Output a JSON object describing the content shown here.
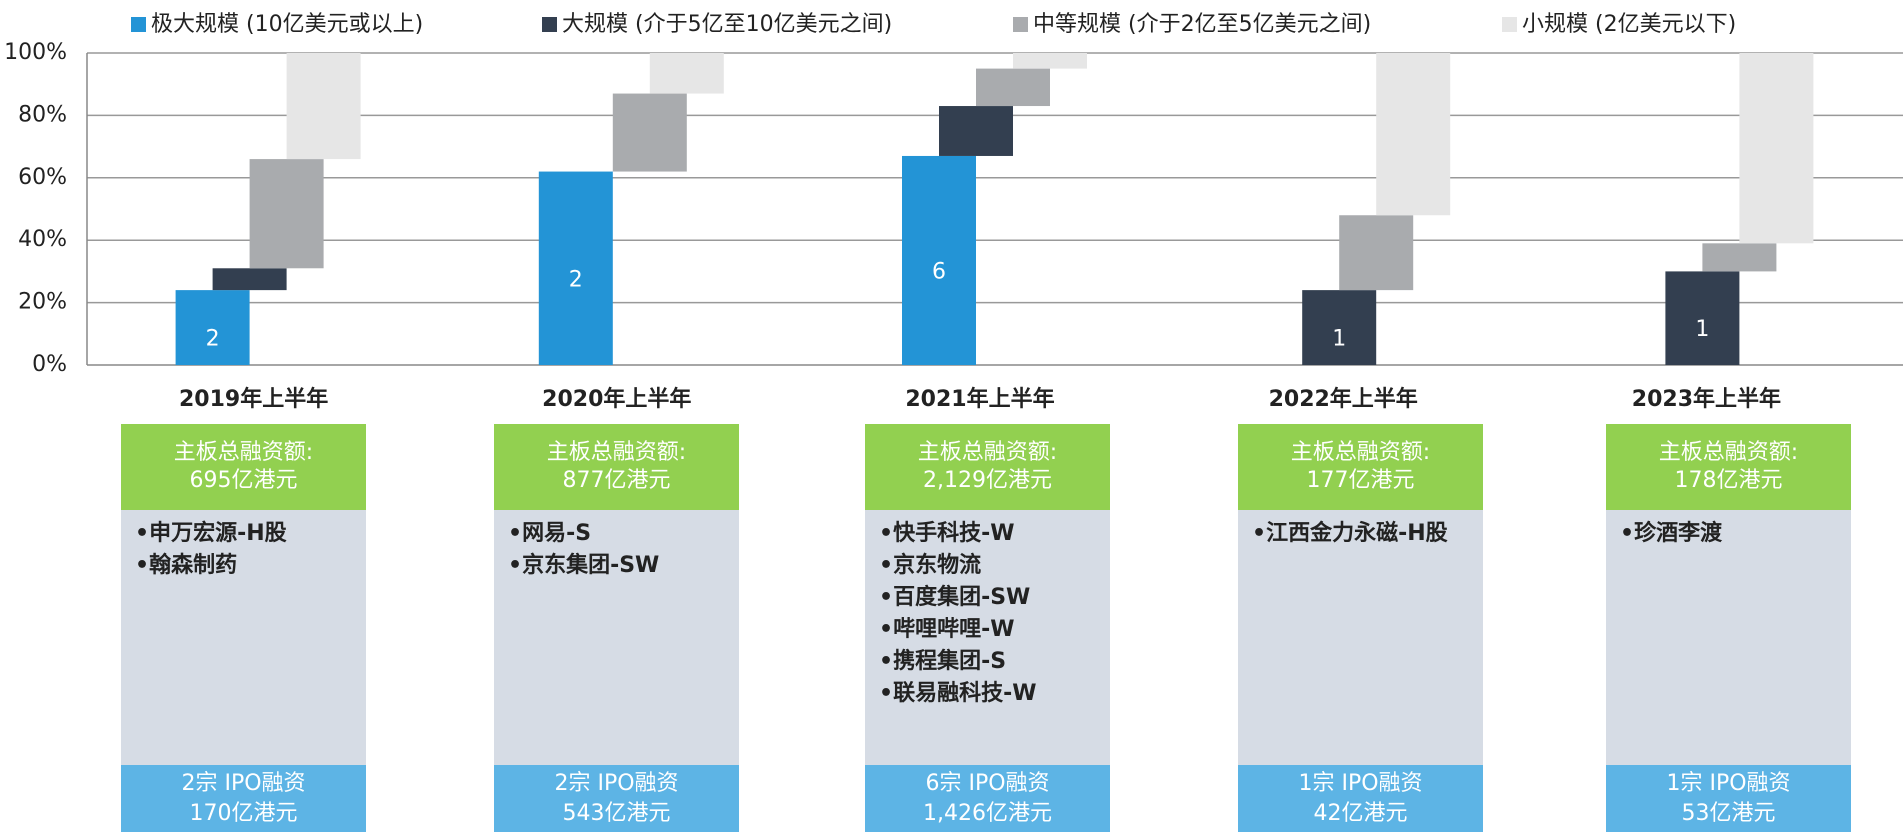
{
  "chart_data": {
    "type": "floating-stacked-bar",
    "categories": [
      "2019年上半年",
      "2020年上半年",
      "2021年上半年",
      "2022年上半年",
      "2023年上半年"
    ],
    "series": [
      {
        "name": "极大规模 (10亿美元或以上)",
        "color": "#2394d6",
        "values": [
          24,
          62,
          67,
          0,
          0
        ],
        "counts": [
          2,
          2,
          6,
          null,
          null
        ]
      },
      {
        "name": "大规模 (介于5亿至10亿美元之间)",
        "color": "#333f50",
        "values": [
          7,
          0,
          16,
          24,
          30
        ],
        "counts": [
          null,
          null,
          null,
          1,
          1
        ]
      },
      {
        "name": "中等规模 (介于2亿至5亿美元之间)",
        "color": "#a9abae",
        "values": [
          35,
          25,
          12,
          24,
          9
        ]
      },
      {
        "name": "小规模 (2亿美元以下)",
        "color": "#e6e6e6",
        "values": [
          34,
          13,
          5,
          52,
          61
        ]
      }
    ],
    "ylim": [
      0,
      100
    ],
    "yticks": [
      {
        "value": 0,
        "label": "0%"
      },
      {
        "value": 20,
        "label": "20%"
      },
      {
        "value": 40,
        "label": "40%"
      },
      {
        "value": 60,
        "label": "60%"
      },
      {
        "value": 80,
        "label": "80%"
      },
      {
        "value": 100,
        "label": "100%"
      }
    ],
    "grid": true,
    "legend": "top"
  },
  "panels": [
    {
      "header": [
        "主板总融资额:",
        "695亿港元"
      ],
      "items": [
        "申万宏源-H股",
        "翰森制药"
      ],
      "footer": [
        "2宗 IPO融资",
        "170亿港元"
      ]
    },
    {
      "header": [
        "主板总融资额:",
        "877亿港元"
      ],
      "items": [
        "网易-S",
        "京东集团-SW"
      ],
      "footer": [
        "2宗 IPO融资",
        "543亿港元"
      ]
    },
    {
      "header": [
        "主板总融资额:",
        "2,129亿港元"
      ],
      "items": [
        "快手科技-W",
        "京东物流",
        "百度集团-SW",
        "哔哩哔哩-W",
        "携程集团-S",
        "联易融科技-W"
      ],
      "footer": [
        "6宗 IPO融资",
        "1,426亿港元"
      ]
    },
    {
      "header": [
        "主板总融资额:",
        "177亿港元"
      ],
      "items": [
        "江西金力永磁-H股"
      ],
      "footer": [
        "1宗 IPO融资",
        "42亿港元"
      ]
    },
    {
      "header": [
        "主板总融资额:",
        "178亿港元"
      ],
      "items": [
        "珍酒李渡"
      ],
      "footer": [
        "1宗 IPO融资",
        "53亿港元"
      ]
    }
  ]
}
